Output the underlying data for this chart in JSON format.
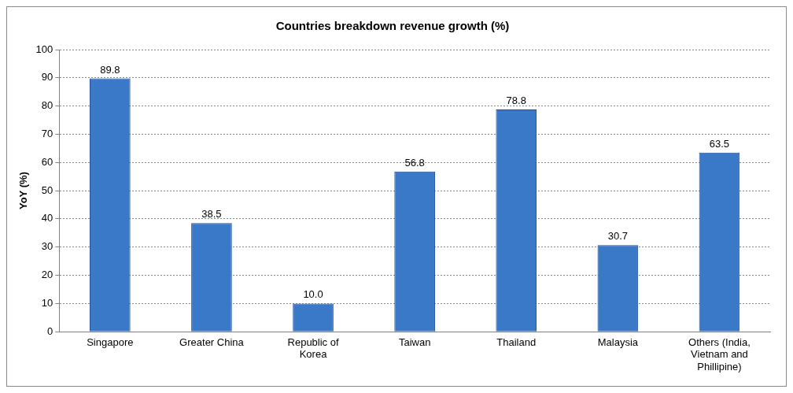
{
  "chart_data": {
    "type": "bar",
    "title": "Countries breakdown revenue growth (%)",
    "ylabel": "YoY (%)",
    "categories": [
      "Singapore",
      "Greater China",
      "Republic of Korea",
      "Taiwan",
      "Thailand",
      "Malaysia",
      "Others (India, Vietnam and Phillipine)"
    ],
    "values": [
      89.8,
      38.5,
      10.0,
      56.8,
      78.8,
      30.7,
      63.5
    ],
    "value_labels": [
      "89.8",
      "38.5",
      "10.0",
      "56.8",
      "78.8",
      "30.7",
      "63.5"
    ],
    "color": "#3a78c8",
    "ylim": [
      0,
      100
    ],
    "yticks": [
      0,
      10,
      20,
      30,
      40,
      50,
      60,
      70,
      80,
      90,
      100
    ],
    "grid": "y",
    "legend": false
  }
}
